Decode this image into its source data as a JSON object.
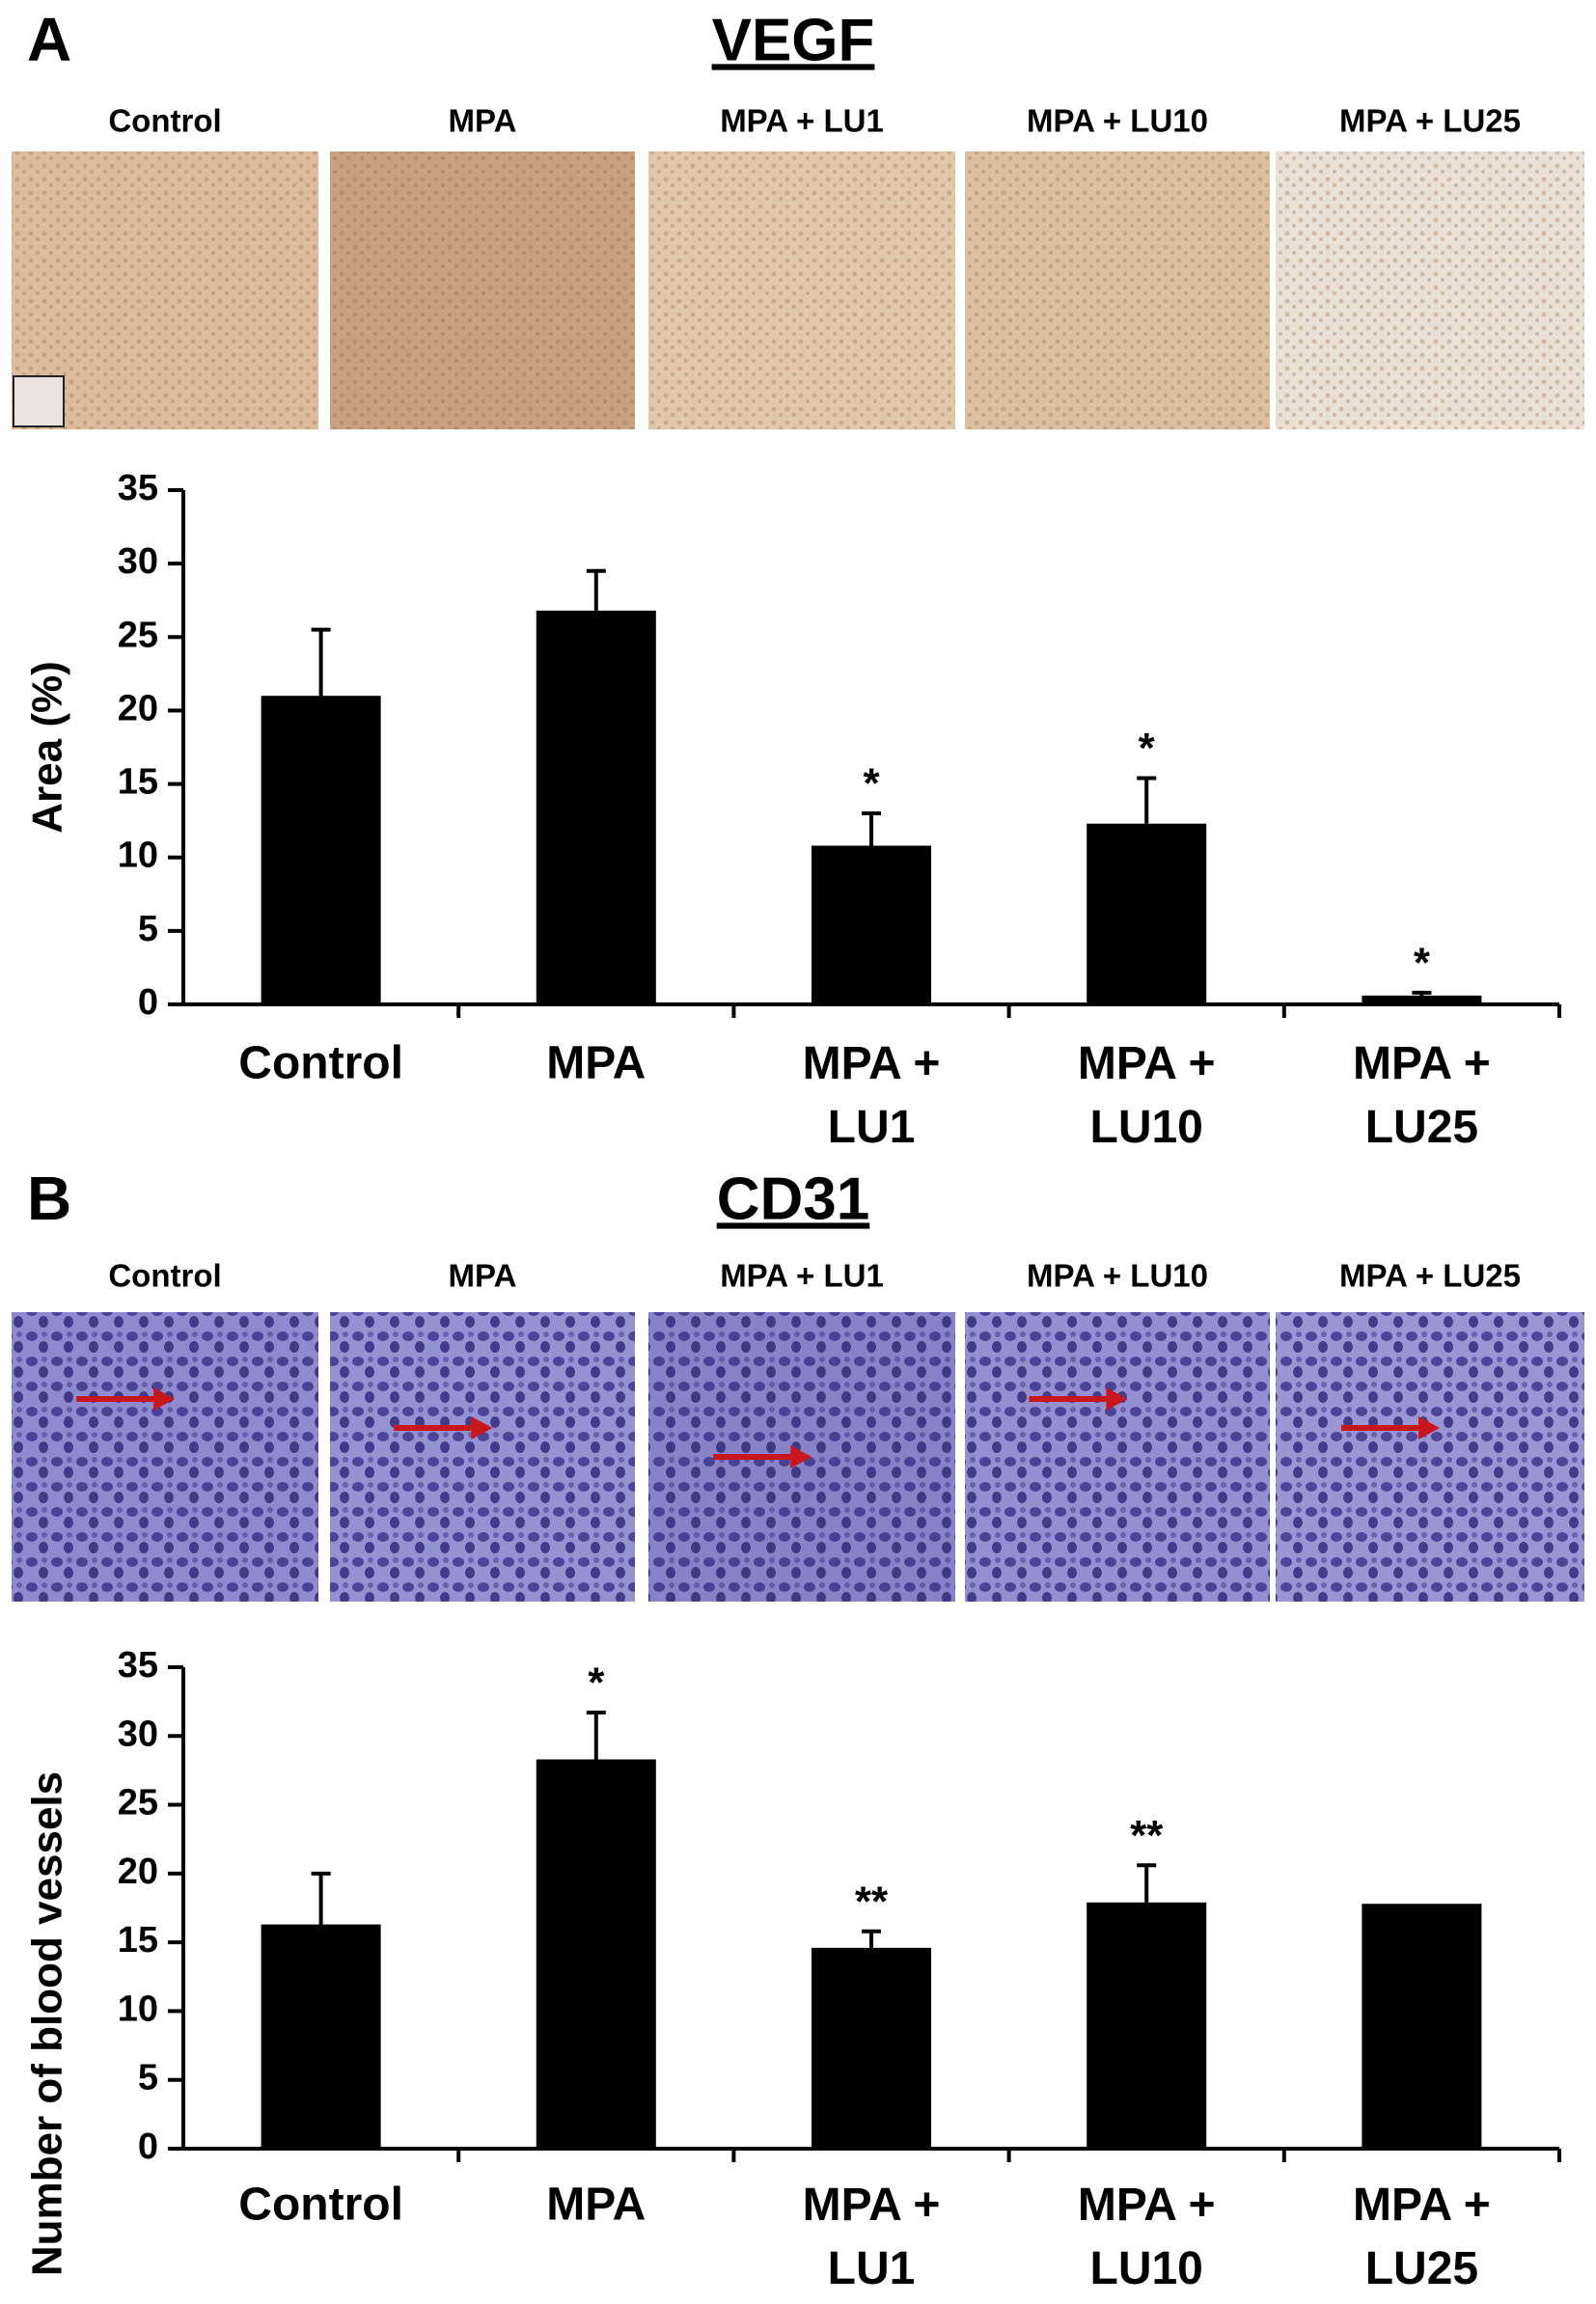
{
  "chart_data": [
    {
      "type": "bar",
      "panel_label": "A",
      "title": "VEGF",
      "image_labels": [
        "Control",
        "MPA",
        "MPA + LU1",
        "MPA + LU10",
        "MPA + LU25"
      ],
      "ylabel": "Area (%)",
      "categories": [
        "Control",
        "MPA",
        "MPA + LU1",
        "MPA + LU10",
        "MPA + LU25"
      ],
      "values": [
        21,
        26.8,
        10.8,
        12.3,
        0.6
      ],
      "errors": [
        4.5,
        2.7,
        2.2,
        3.1,
        0.2
      ],
      "annotations": [
        null,
        null,
        "*",
        "*",
        "*"
      ],
      "color": "#000000",
      "ylim": [
        0,
        35
      ],
      "yticks": [
        0,
        5,
        10,
        15,
        20,
        25,
        30,
        35
      ]
    },
    {
      "type": "bar",
      "panel_label": "B",
      "title": "CD31",
      "image_labels": [
        "Control",
        "MPA",
        "MPA + LU1",
        "MPA + LU10",
        "MPA + LU25"
      ],
      "ylabel": "Number of blood vessels",
      "categories": [
        "Control",
        "MPA",
        "MPA + LU1",
        "MPA + LU10",
        "MPA + LU25"
      ],
      "values": [
        16.3,
        28.3,
        14.6,
        17.9,
        17.8
      ],
      "errors": [
        3.7,
        3.4,
        1.2,
        2.7,
        null
      ],
      "annotations": [
        null,
        "*",
        "**",
        "**",
        null
      ],
      "color": "#000000",
      "ylim": [
        0,
        35
      ],
      "yticks": [
        0,
        5,
        10,
        15,
        20,
        25,
        30,
        35
      ]
    }
  ]
}
